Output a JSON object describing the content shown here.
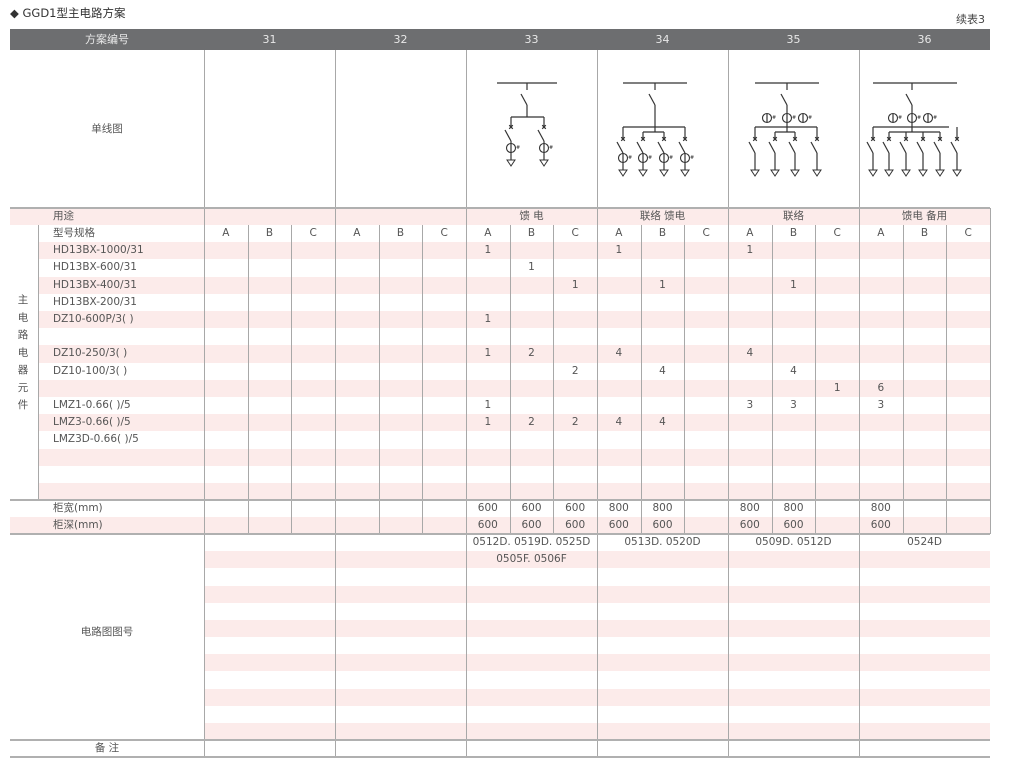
{
  "title": "◆ GGD1型主电路方案",
  "continued": "续表3",
  "header": {
    "label": "方案编号",
    "schemes": [
      "31",
      "32",
      "33",
      "34",
      "35",
      "36"
    ]
  },
  "diagram_label": "单线图",
  "usage": {
    "label": "用途",
    "values": [
      "",
      "",
      "馈 电",
      "联络 馈电",
      "联络",
      "馈电 备用"
    ]
  },
  "group_label": [
    "主",
    "电",
    "路",
    "电",
    "器",
    "元",
    "件"
  ],
  "spec_label": "型号规格",
  "subcolumns": [
    "A",
    "B",
    "C"
  ],
  "components": [
    {
      "name": "HD13BX-1000/31",
      "values": [
        "",
        "",
        "",
        "",
        "",
        "",
        "1",
        "",
        "",
        "1",
        "",
        "",
        "1",
        "",
        "",
        "",
        "",
        ""
      ]
    },
    {
      "name": "HD13BX-600/31",
      "values": [
        "",
        "",
        "",
        "",
        "",
        "",
        "",
        "1",
        "",
        "",
        "",
        "",
        "",
        "",
        "",
        "",
        "",
        ""
      ]
    },
    {
      "name": "HD13BX-400/31",
      "values": [
        "",
        "",
        "",
        "",
        "",
        "",
        "",
        "",
        "1",
        "",
        "1",
        "",
        "",
        "1",
        "",
        "",
        "",
        ""
      ]
    },
    {
      "name": "HD13BX-200/31",
      "values": [
        "",
        "",
        "",
        "",
        "",
        "",
        "",
        "",
        "",
        "",
        "",
        "",
        "",
        "",
        "",
        "",
        "",
        ""
      ]
    },
    {
      "name": "DZ10-600P/3( )",
      "values": [
        "",
        "",
        "",
        "",
        "",
        "",
        "1",
        "",
        "",
        "",
        "",
        "",
        "",
        "",
        "",
        "",
        "",
        ""
      ]
    },
    {
      "name": "",
      "values": [
        "",
        "",
        "",
        "",
        "",
        "",
        "",
        "",
        "",
        "",
        "",
        "",
        "",
        "",
        "",
        "",
        "",
        ""
      ]
    },
    {
      "name": "DZ10-250/3( )",
      "values": [
        "",
        "",
        "",
        "",
        "",
        "",
        "1",
        "2",
        "",
        "4",
        "",
        "",
        "4",
        "",
        "",
        "",
        "",
        ""
      ]
    },
    {
      "name": "DZ10-100/3( )",
      "values": [
        "",
        "",
        "",
        "",
        "",
        "",
        "",
        "",
        "2",
        "",
        "4",
        "",
        "",
        "4",
        "",
        "",
        "",
        ""
      ]
    },
    {
      "name": "",
      "values": [
        "",
        "",
        "",
        "",
        "",
        "",
        "",
        "",
        "",
        "",
        "",
        "",
        "",
        "",
        "1",
        "6",
        "",
        ""
      ]
    },
    {
      "name": "LMZ1-0.66( )/5",
      "values": [
        "",
        "",
        "",
        "",
        "",
        "",
        "1",
        "",
        "",
        "",
        "",
        "",
        "3",
        "3",
        "",
        "3",
        "",
        ""
      ]
    },
    {
      "name": "LMZ3-0.66( )/5",
      "values": [
        "",
        "",
        "",
        "",
        "",
        "",
        "1",
        "2",
        "2",
        "4",
        "4",
        "",
        "",
        "",
        "",
        "",
        "",
        ""
      ]
    },
    {
      "name": "LMZ3D-0.66( )/5",
      "values": [
        "",
        "",
        "",
        "",
        "",
        "",
        "",
        "",
        "",
        "",
        "",
        "",
        "",
        "",
        "",
        "",
        "",
        ""
      ]
    },
    {
      "name": "",
      "values": [
        "",
        "",
        "",
        "",
        "",
        "",
        "",
        "",
        "",
        "",
        "",
        "",
        "",
        "",
        "",
        "",
        "",
        ""
      ]
    },
    {
      "name": "",
      "values": [
        "",
        "",
        "",
        "",
        "",
        "",
        "",
        "",
        "",
        "",
        "",
        "",
        "",
        "",
        "",
        "",
        "",
        ""
      ]
    },
    {
      "name": "",
      "values": [
        "",
        "",
        "",
        "",
        "",
        "",
        "",
        "",
        "",
        "",
        "",
        "",
        "",
        "",
        "",
        "",
        "",
        ""
      ]
    }
  ],
  "cabinet_width": {
    "label": "柜宽(mm)",
    "values": [
      "",
      "",
      "",
      "",
      "",
      "",
      "600",
      "600",
      "600",
      "800",
      "800",
      "",
      "800",
      "800",
      "",
      "800",
      "",
      ""
    ]
  },
  "cabinet_depth": {
    "label": "柜深(mm)",
    "values": [
      "",
      "",
      "",
      "",
      "",
      "",
      "600",
      "600",
      "600",
      "600",
      "600",
      "",
      "600",
      "600",
      "",
      "600",
      "",
      ""
    ]
  },
  "circuit_numbers": {
    "label": "电路图图号",
    "values": [
      [],
      [],
      [
        "0512D. 0519D. 0525D",
        "0505F. 0506F"
      ],
      [
        "0513D. 0520D"
      ],
      [
        "0509D. 0512D"
      ],
      [
        "0524D"
      ]
    ]
  },
  "remarks": {
    "label": "备 注"
  },
  "colors": {
    "header_bg": "#6d6e70",
    "stripe": "#fcebea",
    "rule": "#b0b0b0"
  }
}
